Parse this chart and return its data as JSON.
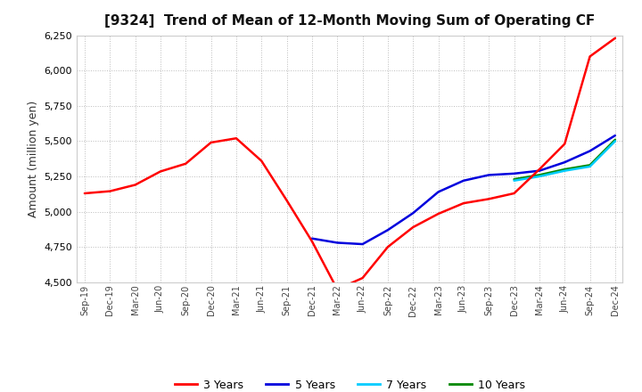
{
  "title": "[9324]  Trend of Mean of 12-Month Moving Sum of Operating CF",
  "ylabel": "Amount (million yen)",
  "ylim": [
    4500,
    6250
  ],
  "yticks": [
    4500,
    4750,
    5000,
    5250,
    5500,
    5750,
    6000,
    6250
  ],
  "background_color": "#ffffff",
  "plot_bg_color": "#ffffff",
  "grid_color": "#aaaaaa",
  "x_labels": [
    "Sep-19",
    "Dec-19",
    "Mar-20",
    "Jun-20",
    "Sep-20",
    "Dec-20",
    "Mar-21",
    "Jun-21",
    "Sep-21",
    "Dec-21",
    "Mar-22",
    "Jun-22",
    "Sep-22",
    "Dec-22",
    "Mar-23",
    "Jun-23",
    "Sep-23",
    "Dec-23",
    "Mar-24",
    "Jun-24",
    "Sep-24",
    "Dec-24"
  ],
  "series": {
    "3 Years": {
      "color": "#ff0000",
      "data_x": [
        0,
        1,
        2,
        3,
        4,
        5,
        6,
        7,
        8,
        9,
        10,
        11,
        12,
        13,
        14,
        15,
        16,
        17,
        18,
        19,
        20,
        21
      ],
      "data_y": [
        5130,
        5145,
        5190,
        5285,
        5340,
        5490,
        5520,
        5360,
        5080,
        4790,
        4450,
        4530,
        4750,
        4890,
        4985,
        5060,
        5090,
        5130,
        5300,
        5480,
        6100,
        6230
      ]
    },
    "5 Years": {
      "color": "#0000dd",
      "data_x": [
        9,
        10,
        11,
        12,
        13,
        14,
        15,
        16,
        17,
        18,
        19,
        20,
        21
      ],
      "data_y": [
        4810,
        4780,
        4770,
        4870,
        4990,
        5140,
        5220,
        5260,
        5270,
        5290,
        5350,
        5430,
        5540
      ]
    },
    "7 Years": {
      "color": "#00ccff",
      "data_x": [
        17,
        18,
        19,
        20,
        21
      ],
      "data_y": [
        5220,
        5250,
        5290,
        5320,
        5500
      ]
    },
    "10 Years": {
      "color": "#008800",
      "data_x": [
        17,
        18,
        19,
        20,
        21
      ],
      "data_y": [
        5230,
        5260,
        5300,
        5330,
        5510
      ]
    }
  },
  "legend": [
    {
      "label": "3 Years",
      "color": "#ff0000"
    },
    {
      "label": "5 Years",
      "color": "#0000dd"
    },
    {
      "label": "7 Years",
      "color": "#00ccff"
    },
    {
      "label": "10 Years",
      "color": "#008800"
    }
  ]
}
